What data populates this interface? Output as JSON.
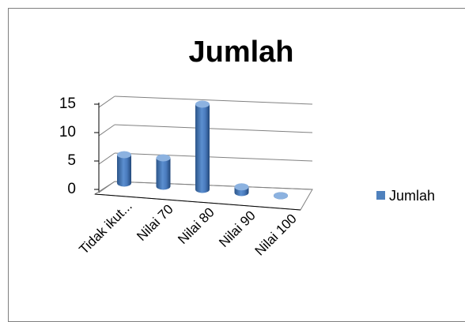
{
  "chart_data": {
    "type": "bar",
    "style": "3d-cylinder",
    "title": "Jumlah",
    "categories": [
      "Tidak ikut...",
      "Nilai 70",
      "Nilai 80",
      "Nilai 90",
      "Nilai 100"
    ],
    "series": [
      {
        "name": "Jumlah",
        "values": [
          5,
          5,
          15,
          1,
          0
        ]
      }
    ],
    "yticks": [
      "0",
      "5",
      "10",
      "15"
    ],
    "ylim": [
      0,
      15
    ],
    "grid": true,
    "legend": "right",
    "colors": {
      "series": "#4f81bd",
      "series_dark": "#2c5589",
      "series_light": "#8cb2e0",
      "grid": "#808080"
    }
  }
}
